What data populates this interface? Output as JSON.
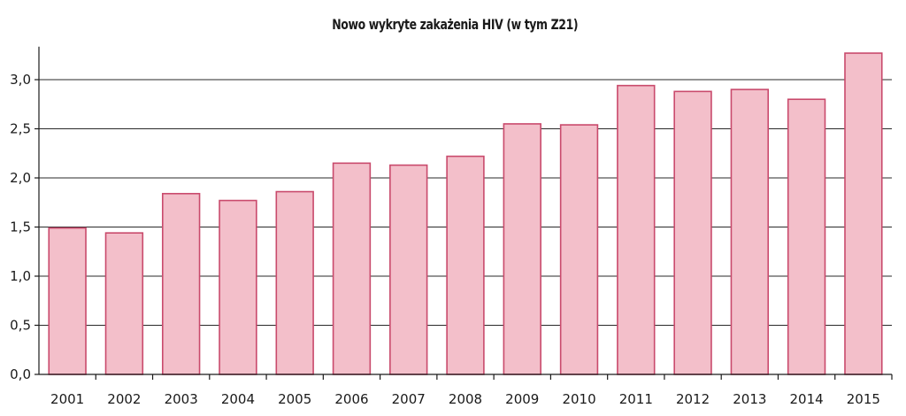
{
  "chart_data": {
    "type": "bar",
    "title": "Nowo wykryte zakażenia HIV (w tym Z21)",
    "xlabel": "",
    "ylabel": "",
    "categories": [
      "2001",
      "2002",
      "2003",
      "2004",
      "2005",
      "2006",
      "2007",
      "2008",
      "2009",
      "2010",
      "2011",
      "2012",
      "2013",
      "2014",
      "2015"
    ],
    "values": [
      1.49,
      1.44,
      1.84,
      1.77,
      1.86,
      2.15,
      2.13,
      2.22,
      2.55,
      2.54,
      2.94,
      2.88,
      2.9,
      2.8,
      3.27
    ],
    "ylim": [
      0,
      3.3
    ],
    "yticks": [
      0,
      0.5,
      1.0,
      1.5,
      2.0,
      2.5,
      3.0
    ],
    "ytick_labels": [
      "0,0",
      "0,5",
      "1,0",
      "1,5",
      "2,0",
      "2,5",
      "3,0"
    ],
    "grid": true,
    "bar_fill": "#f3bfca",
    "bar_stroke": "#c94a6c"
  }
}
